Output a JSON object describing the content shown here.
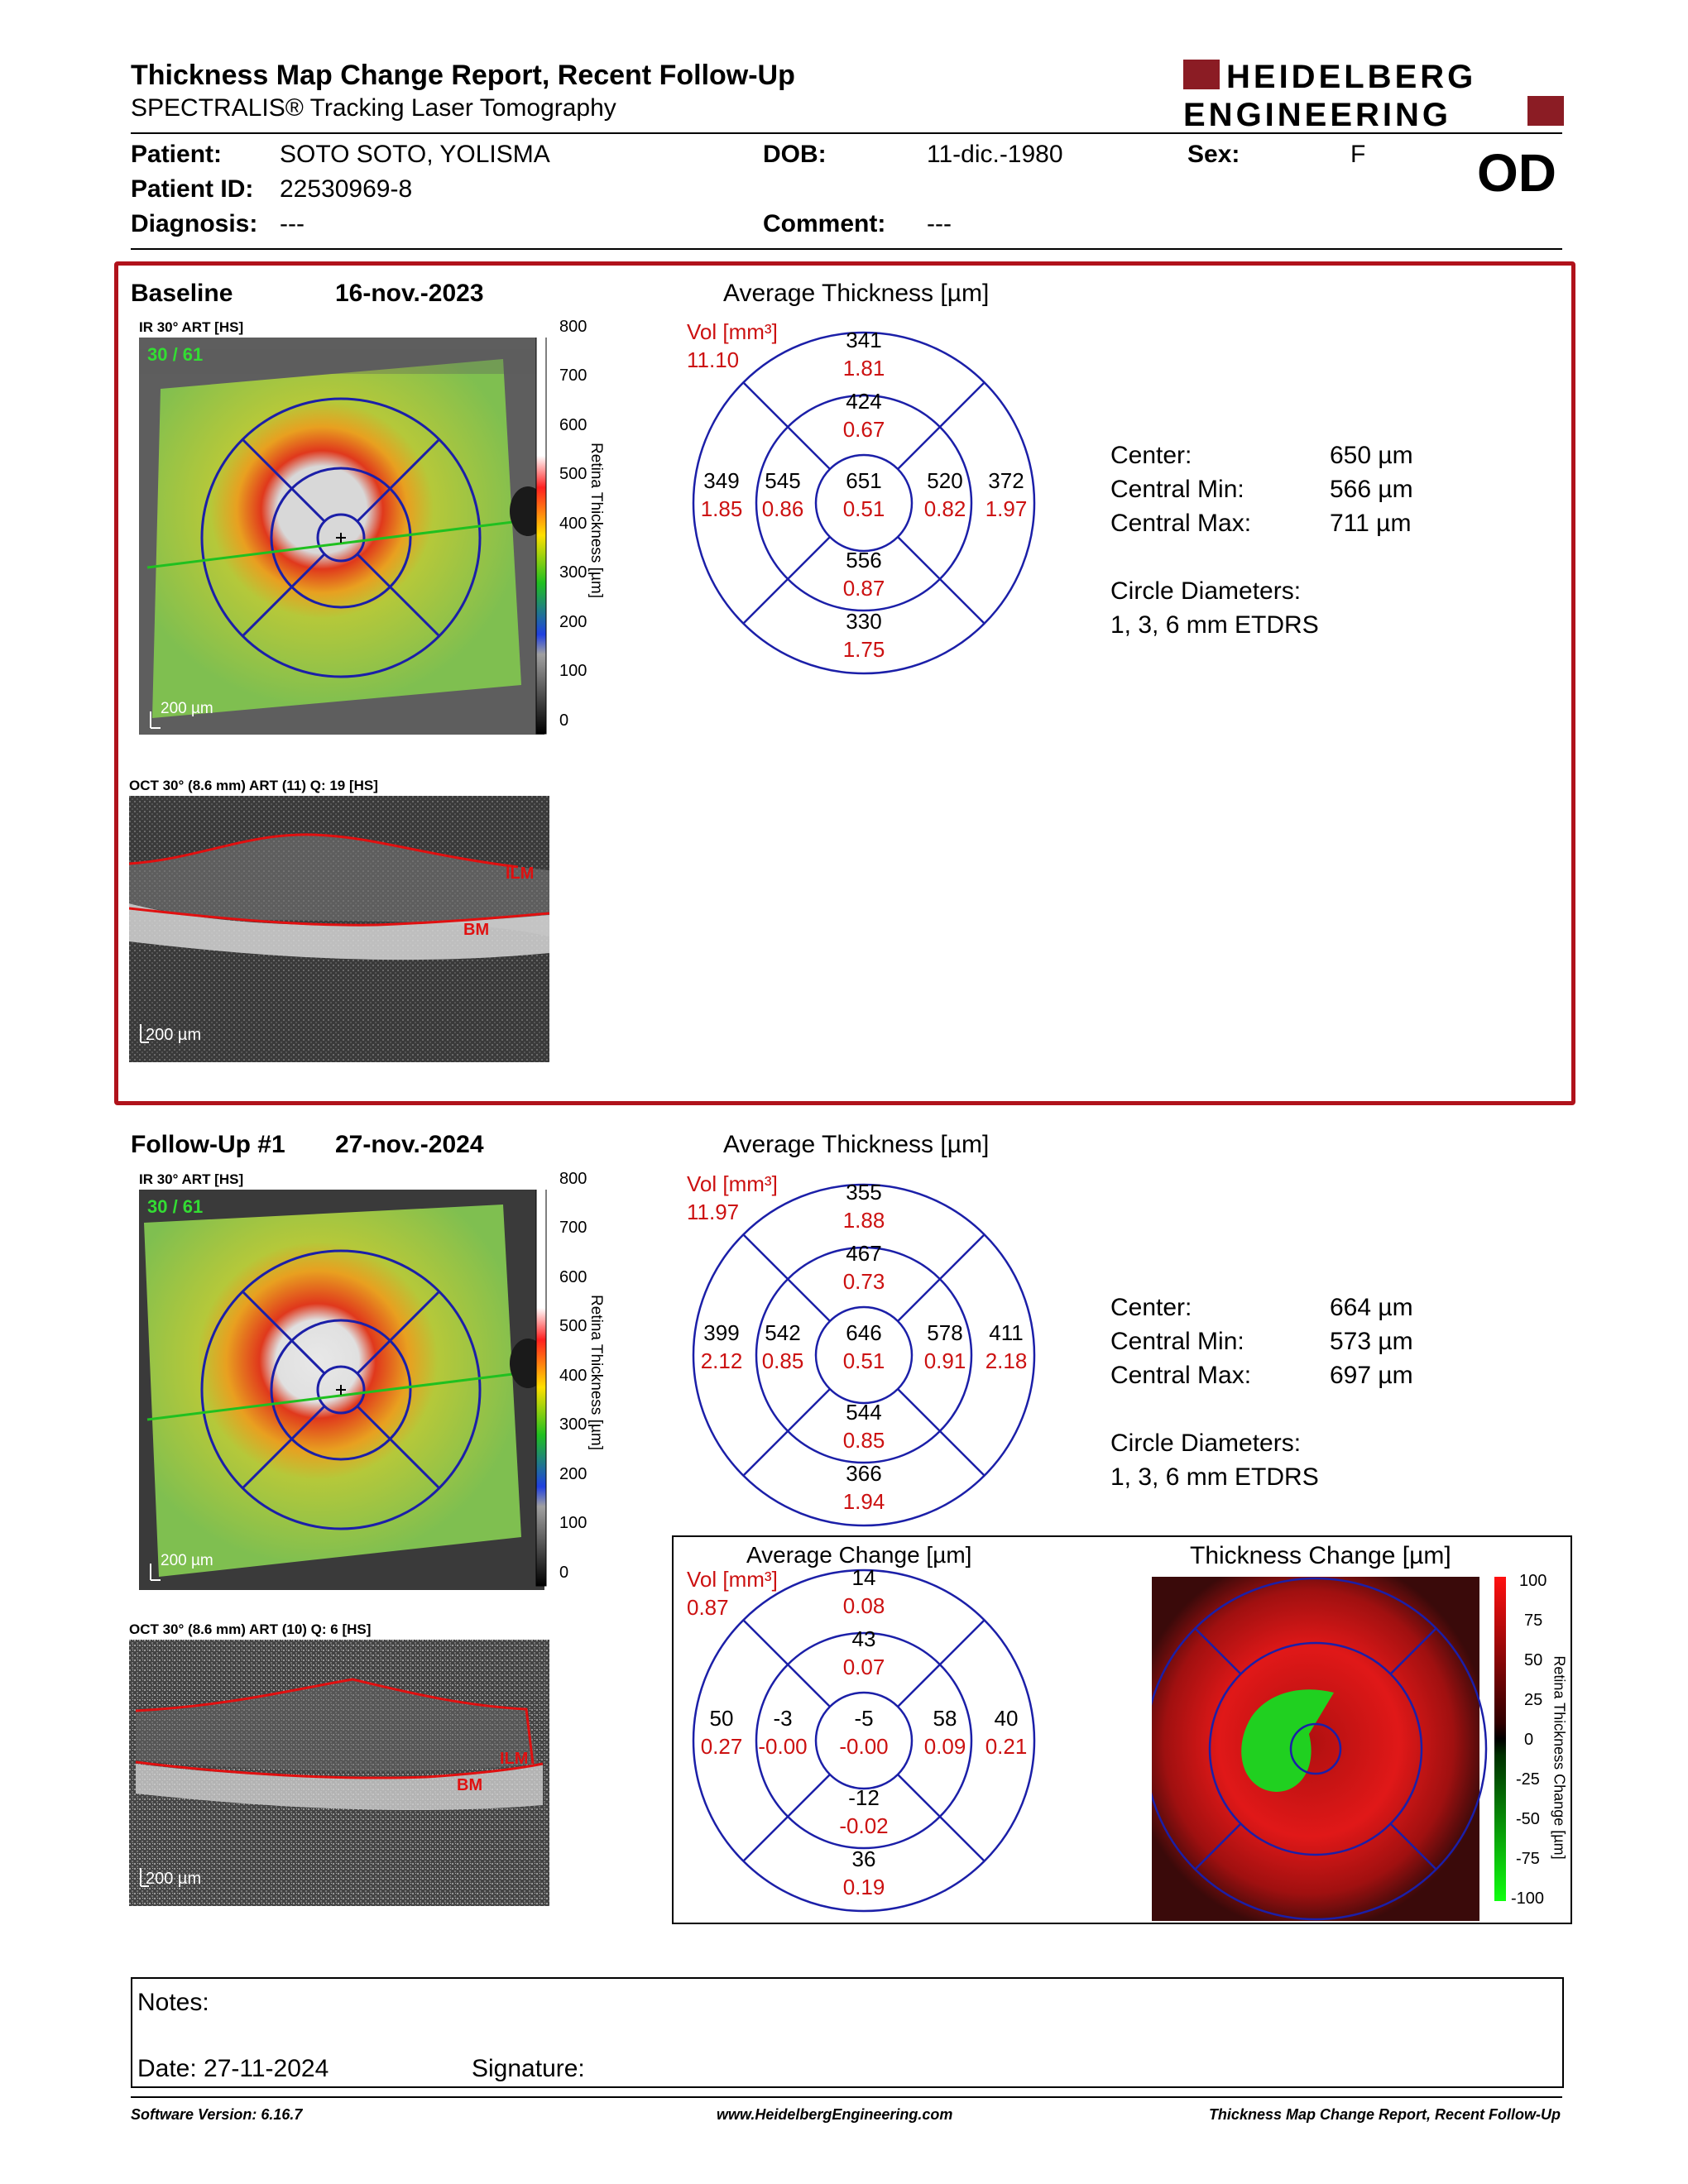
{
  "header": {
    "title": "Thickness Map Change Report, Recent Follow-Up",
    "subtitle": "SPECTRALIS® Tracking Laser Tomography",
    "brand_line1": "HEIDELBERG",
    "brand_line2": "ENGINEERING",
    "brand_color": "#8b1c24",
    "eye": "OD"
  },
  "patient": {
    "patient_label": "Patient:",
    "patient_value": "SOTO SOTO, YOLISMA",
    "id_label": "Patient ID:",
    "id_value": "22530969-8",
    "diagnosis_label": "Diagnosis:",
    "diagnosis_value": "---",
    "dob_label": "DOB:",
    "dob_value": "11-dic.-1980",
    "comment_label": "Comment:",
    "comment_value": "---",
    "sex_label": "Sex:",
    "sex_value": "F"
  },
  "baseline": {
    "label": "Baseline",
    "date": "16-nov.-2023",
    "ir_caption": "IR 30° ART [HS]",
    "frame_counter": "30 / 61",
    "scale_label": "200 µm",
    "colorbar_ticks": [
      "800",
      "700",
      "600",
      "500",
      "400",
      "300",
      "200",
      "100",
      "0"
    ],
    "colorbar_title": "Retina Thickness [µm]",
    "oct_caption": "OCT 30° (8.6 mm) ART (11) Q: 19 [HS]",
    "oct_scale": "200 µm",
    "ilm": "ILM",
    "bm": "BM",
    "avg_title": "Average Thickness [µm]",
    "vol_label": "Vol [mm³]",
    "vol_total": "11.10",
    "grid": {
      "superior_outer": [
        "341",
        "1.81"
      ],
      "superior_inner": [
        "424",
        "0.67"
      ],
      "temporal_outer": [
        "349",
        "1.85"
      ],
      "temporal_inner": [
        "545",
        "0.86"
      ],
      "center": [
        "651",
        "0.51"
      ],
      "nasal_inner": [
        "520",
        "0.82"
      ],
      "nasal_outer": [
        "372",
        "1.97"
      ],
      "inferior_inner": [
        "556",
        "0.87"
      ],
      "inferior_outer": [
        "330",
        "1.75"
      ]
    },
    "stats": [
      {
        "k": "Center:",
        "v": "650 µm"
      },
      {
        "k": "Central Min:",
        "v": "566 µm"
      },
      {
        "k": "Central Max:",
        "v": "711 µm"
      }
    ],
    "circle_label": "Circle Diameters:",
    "circle_value": "1, 3, 6 mm ETDRS"
  },
  "followup": {
    "label": "Follow-Up #1",
    "date": "27-nov.-2024",
    "ir_caption": "IR 30° ART [HS]",
    "frame_counter": "30 / 61",
    "scale_label": "200 µm",
    "colorbar_ticks": [
      "800",
      "700",
      "600",
      "500",
      "400",
      "300",
      "200",
      "100",
      "0"
    ],
    "colorbar_title": "Retina Thickness [µm]",
    "oct_caption": "OCT 30° (8.6 mm) ART (10) Q: 6 [HS]",
    "oct_scale": "200 µm",
    "ilm": "ILM",
    "bm": "BM",
    "avg_title": "Average Thickness [µm]",
    "vol_label": "Vol [mm³]",
    "vol_total": "11.97",
    "grid": {
      "superior_outer": [
        "355",
        "1.88"
      ],
      "superior_inner": [
        "467",
        "0.73"
      ],
      "temporal_outer": [
        "399",
        "2.12"
      ],
      "temporal_inner": [
        "542",
        "0.85"
      ],
      "center": [
        "646",
        "0.51"
      ],
      "nasal_inner": [
        "578",
        "0.91"
      ],
      "nasal_outer": [
        "411",
        "2.18"
      ],
      "inferior_inner": [
        "544",
        "0.85"
      ],
      "inferior_outer": [
        "366",
        "1.94"
      ]
    },
    "stats": [
      {
        "k": "Center:",
        "v": "664 µm"
      },
      {
        "k": "Central Min:",
        "v": "573 µm"
      },
      {
        "k": "Central Max:",
        "v": "697 µm"
      }
    ],
    "circle_label": "Circle Diameters:",
    "circle_value": "1, 3, 6 mm ETDRS"
  },
  "change": {
    "avg_title": "Average Change [µm]",
    "vol_label": "Vol [mm³]",
    "vol_total": "0.87",
    "grid": {
      "superior_outer": [
        "14",
        "0.08"
      ],
      "superior_inner": [
        "43",
        "0.07"
      ],
      "temporal_outer": [
        "50",
        "0.27"
      ],
      "temporal_inner": [
        "-3",
        "-0.00"
      ],
      "center": [
        "-5",
        "-0.00"
      ],
      "nasal_inner": [
        "58",
        "0.09"
      ],
      "nasal_outer": [
        "40",
        "0.21"
      ],
      "inferior_inner": [
        "-12",
        "-0.02"
      ],
      "inferior_outer": [
        "36",
        "0.19"
      ]
    },
    "map_title": "Thickness Change [µm]",
    "colorbar_ticks": [
      "100",
      "75",
      "50",
      "25",
      "0",
      "-25",
      "-50",
      "-75",
      "-100"
    ],
    "colorbar_title": "Retina Thickness Change [µm]"
  },
  "notes": {
    "notes_label": "Notes:",
    "date_label": "Date: 27-11-2024",
    "signature_label": "Signature:"
  },
  "footer": {
    "software": "Software Version: 6.16.7",
    "website": "www.HeidelbergEngineering.com",
    "report": "Thickness Map Change Report, Recent Follow-Up"
  },
  "colors": {
    "frame_red": "#b0121b",
    "grid_blue": "#1b1fa8",
    "value_red": "#cc1111"
  }
}
